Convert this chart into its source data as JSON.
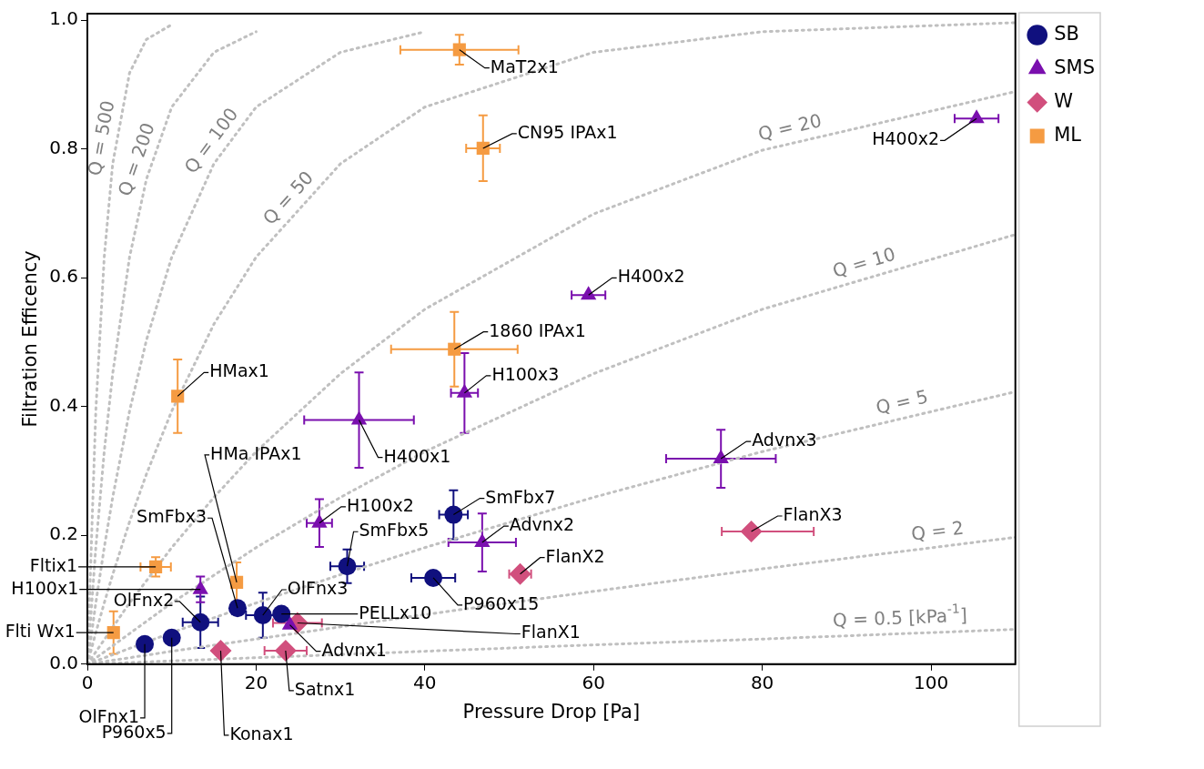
{
  "chart_data": {
    "type": "scatter",
    "xlabel": "Pressure Drop [Pa]",
    "ylabel": "Filtration Efficency",
    "xlim": [
      0,
      110
    ],
    "xticks": [
      0,
      20,
      40,
      60,
      80,
      100
    ],
    "ylim": [
      0,
      1.01
    ],
    "yticks": [
      {
        "value": 0,
        "label": "0.0"
      },
      {
        "value": 0.2,
        "label": "0.2"
      },
      {
        "value": 0.4,
        "label": "0.4"
      },
      {
        "value": 0.6,
        "label": "0.6"
      },
      {
        "value": 0.8,
        "label": "0.8"
      },
      {
        "value": 1,
        "label": "1.0"
      }
    ],
    "legend": "right",
    "series": [
      {
        "name": "Q = 500",
        "type": "line",
        "color": "#c0c0c0",
        "line_style": "dotted",
        "marker": "none",
        "x": [
          0,
          1,
          2,
          3,
          5,
          7,
          10
        ],
        "values": [
          0,
          0.393,
          0.632,
          0.777,
          0.918,
          0.97,
          0.993
        ]
      },
      {
        "name": "Q = 200",
        "type": "line",
        "color": "#c0c0c0",
        "line_style": "dotted",
        "marker": "none",
        "x": [
          0,
          1,
          2,
          3,
          5,
          7,
          10,
          15,
          20
        ],
        "values": [
          0,
          0.181,
          0.33,
          0.451,
          0.632,
          0.753,
          0.865,
          0.95,
          0.982
        ]
      },
      {
        "name": "Q = 100",
        "type": "line",
        "color": "#c0c0c0",
        "line_style": "dotted",
        "marker": "none",
        "x": [
          0,
          1,
          2,
          3,
          5,
          7,
          10,
          15,
          20,
          30,
          40
        ],
        "values": [
          0,
          0.095,
          0.181,
          0.259,
          0.393,
          0.503,
          0.632,
          0.777,
          0.865,
          0.95,
          0.982
        ]
      },
      {
        "name": "Q = 50",
        "type": "line",
        "color": "#c0c0c0",
        "line_style": "dotted",
        "marker": "none",
        "x": [
          0,
          1,
          2,
          3,
          5,
          7,
          10,
          15,
          20,
          30,
          40,
          60,
          80,
          110
        ],
        "values": [
          0,
          0.049,
          0.095,
          0.139,
          0.221,
          0.295,
          0.393,
          0.528,
          0.632,
          0.777,
          0.865,
          0.95,
          0.982,
          0.996
        ]
      },
      {
        "name": "Q = 20",
        "type": "line",
        "color": "#c0c0c0",
        "line_style": "dotted",
        "marker": "none",
        "x": [
          0,
          5,
          10,
          15,
          20,
          30,
          40,
          60,
          80,
          110
        ],
        "values": [
          0,
          0.095,
          0.181,
          0.259,
          0.33,
          0.451,
          0.551,
          0.699,
          0.798,
          0.889
        ]
      },
      {
        "name": "Q = 10",
        "type": "line",
        "color": "#c0c0c0",
        "line_style": "dotted",
        "marker": "none",
        "x": [
          0,
          10,
          20,
          30,
          40,
          60,
          80,
          110
        ],
        "values": [
          0,
          0.095,
          0.181,
          0.259,
          0.33,
          0.451,
          0.551,
          0.667
        ]
      },
      {
        "name": "Q = 5",
        "type": "line",
        "color": "#c0c0c0",
        "line_style": "dotted",
        "marker": "none",
        "x": [
          0,
          10,
          20,
          30,
          40,
          60,
          80,
          110
        ],
        "values": [
          0,
          0.049,
          0.095,
          0.139,
          0.181,
          0.259,
          0.33,
          0.423
        ]
      },
      {
        "name": "Q = 2",
        "type": "line",
        "color": "#c0c0c0",
        "line_style": "dotted",
        "marker": "none",
        "x": [
          0,
          10,
          20,
          30,
          40,
          60,
          80,
          110
        ],
        "values": [
          0,
          0.02,
          0.039,
          0.058,
          0.077,
          0.113,
          0.148,
          0.197
        ]
      },
      {
        "name": "Q = 0.5 [kPa$^{-1}$]",
        "type": "line",
        "color": "#c0c0c0",
        "line_style": "dotted",
        "marker": "none",
        "x": [
          0,
          10,
          20,
          30,
          40,
          60,
          80,
          110
        ],
        "values": [
          0,
          0.005,
          0.01,
          0.015,
          0.02,
          0.03,
          0.039,
          0.054
        ]
      },
      {
        "name": "SB",
        "type": "scatter",
        "color": "#10107e",
        "marker": "circle",
        "x": [
          6.8,
          10.0,
          13.4,
          17.8,
          20.8,
          23.0,
          30.8,
          43.4,
          41.0
        ],
        "values": [
          0.031,
          0.041,
          0.065,
          0.087,
          0.076,
          0.078,
          0.152,
          0.232,
          0.134
        ],
        "errors": [
          null,
          null,
          0.04,
          null,
          0.035,
          null,
          0.026,
          0.038,
          null
        ],
        "xerrors": [
          null,
          null,
          2.1,
          null,
          2.0,
          null,
          2.0,
          1.7,
          2.6
        ]
      },
      {
        "name": "SMS",
        "type": "scatter",
        "color": "#7a0fae",
        "marker": "triangle",
        "x": [
          13.4,
          24.0,
          27.5,
          46.8,
          32.2,
          44.7,
          59.4,
          75.1,
          105.4
        ],
        "values": [
          0.116,
          0.061,
          0.219,
          0.189,
          0.379,
          0.421,
          0.573,
          0.319,
          0.847
        ],
        "errors": [
          0.02,
          null,
          0.037,
          0.045,
          0.074,
          0.062,
          null,
          0.045,
          null
        ],
        "xerrors": [
          null,
          null,
          1.5,
          4.0,
          6.5,
          1.6,
          2.0,
          6.5,
          2.6
        ]
      },
      {
        "name": "W",
        "type": "scatter",
        "color": "#d14f7d",
        "marker": "diamond",
        "x": [
          15.8,
          23.5,
          24.9,
          51.3,
          78.7
        ],
        "values": [
          0.021,
          0.021,
          0.064,
          0.14,
          0.206
        ],
        "errors": [
          null,
          null,
          null,
          null,
          null
        ],
        "xerrors": [
          null,
          2.5,
          2.9,
          1.3,
          [
            75.2,
            86.1
          ]
        ]
      },
      {
        "name": "ML",
        "type": "scatter",
        "color": "#f59b42",
        "marker": "square",
        "x": [
          3.1,
          8.1,
          17.7,
          10.7,
          43.5,
          46.9,
          44.1
        ],
        "values": [
          0.049,
          0.151,
          0.127,
          0.416,
          0.489,
          0.801,
          0.954
        ],
        "errors": [
          0.033,
          0.015,
          0.031,
          0.057,
          0.058,
          0.051,
          0.023
        ],
        "xerrors": [
          null,
          1.8,
          null,
          null,
          7.5,
          2.0,
          7.0
        ]
      }
    ],
    "annotations": [
      {
        "text": "MaT2x1",
        "x": 44.1,
        "y": 0.954
      },
      {
        "text": "CN95 IPAx1",
        "x": 46.9,
        "y": 0.801
      },
      {
        "text": "1860 IPAx1",
        "x": 43.5,
        "y": 0.489
      },
      {
        "text": "HMax1",
        "x": 10.7,
        "y": 0.416
      },
      {
        "text": "H400x2",
        "x": 105.4,
        "y": 0.847
      },
      {
        "text": "H400x2",
        "x": 59.4,
        "y": 0.573
      },
      {
        "text": "H100x3",
        "x": 44.7,
        "y": 0.421
      },
      {
        "text": "H400x1",
        "x": 32.2,
        "y": 0.379
      },
      {
        "text": "Advnx3",
        "x": 75.1,
        "y": 0.319
      },
      {
        "text": "FlanX3",
        "x": 78.7,
        "y": 0.206
      },
      {
        "text": "SmFbx7",
        "x": 43.4,
        "y": 0.232
      },
      {
        "text": "H100x2",
        "x": 27.5,
        "y": 0.219
      },
      {
        "text": "Advnx2",
        "x": 46.8,
        "y": 0.189
      },
      {
        "text": "SmFbx5",
        "x": 30.8,
        "y": 0.152
      },
      {
        "text": "FlanX2",
        "x": 51.3,
        "y": 0.14
      },
      {
        "text": "P960x15",
        "x": 41.0,
        "y": 0.134
      },
      {
        "text": "HMa IPAx1",
        "x": 17.7,
        "y": 0.127
      },
      {
        "text": "SmFbx3",
        "x": 17.8,
        "y": 0.087
      },
      {
        "text": "Fltix1",
        "x": 8.1,
        "y": 0.151
      },
      {
        "text": "H100x1",
        "x": 13.4,
        "y": 0.116
      },
      {
        "text": "OlFnx2",
        "x": 13.4,
        "y": 0.065
      },
      {
        "text": "OlFnx3",
        "x": 20.8,
        "y": 0.076
      },
      {
        "text": "PELLx10",
        "x": 23.0,
        "y": 0.078
      },
      {
        "text": "FlanX1",
        "x": 24.9,
        "y": 0.064
      },
      {
        "text": "Advnx1",
        "x": 24.0,
        "y": 0.061
      },
      {
        "text": "Flti Wx1",
        "x": 3.1,
        "y": 0.049
      },
      {
        "text": "OlFnx1",
        "x": 6.8,
        "y": 0.031
      },
      {
        "text": "P960x5",
        "x": 10.0,
        "y": 0.041
      },
      {
        "text": "Konax1",
        "x": 15.8,
        "y": 0.021
      },
      {
        "text": "Satnx1",
        "x": 23.5,
        "y": 0.021
      }
    ]
  }
}
